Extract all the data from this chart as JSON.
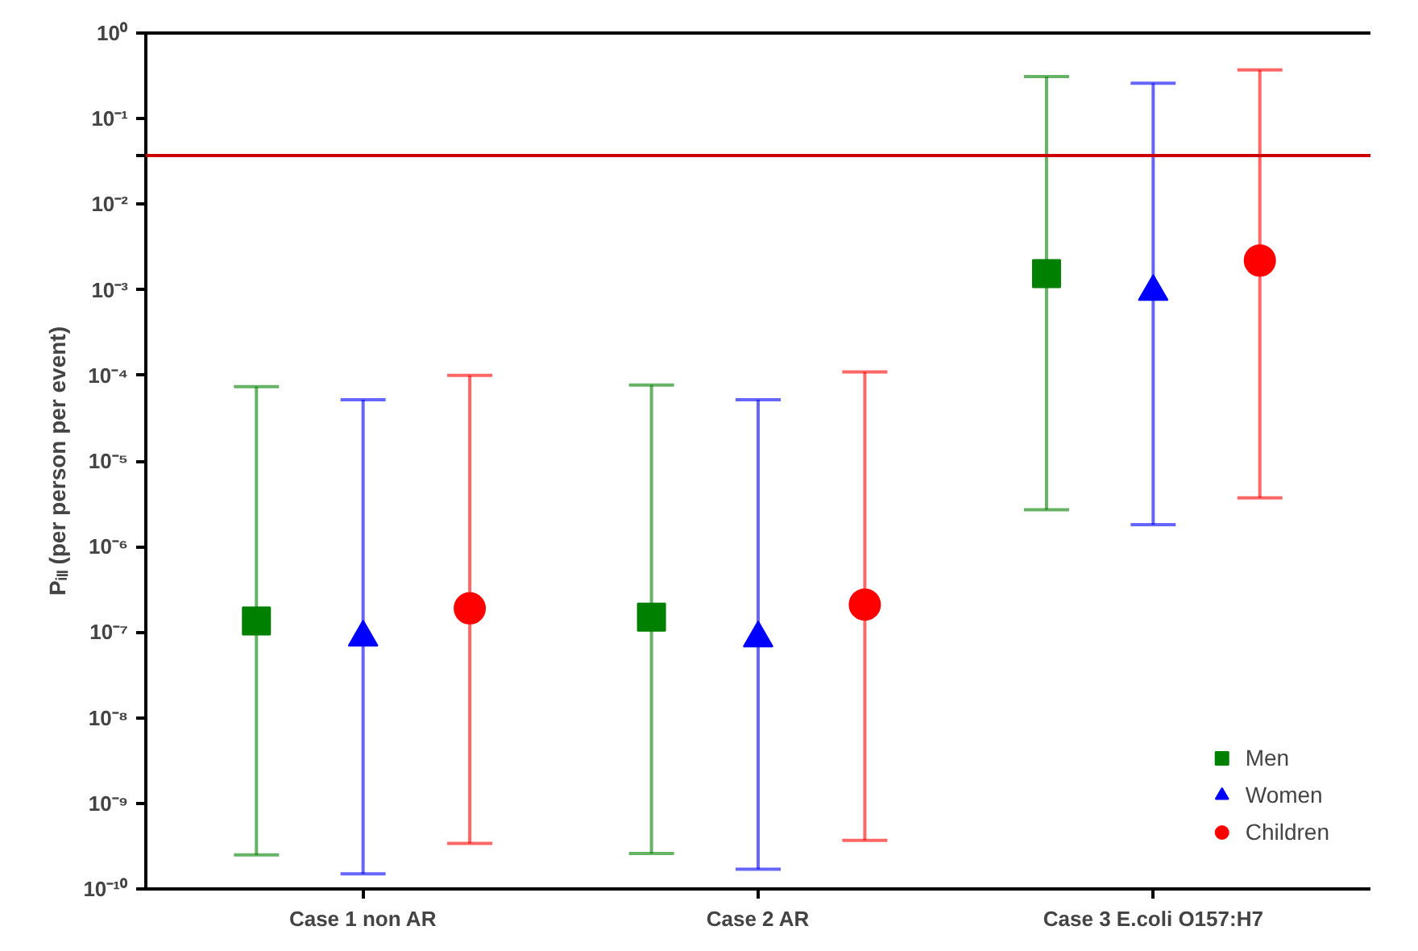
{
  "chart_data": {
    "type": "scatter",
    "ylabel": "Pᵢₗₗ (per person per event)",
    "categories": [
      "Case 1 non AR",
      "Case 2 AR",
      "Case 3 E.coli O157:H7"
    ],
    "log": "y",
    "ylim": [
      1e-10,
      1
    ],
    "yticks": [
      {
        "value": 1,
        "label": "10⁰"
      },
      {
        "value": 0.1,
        "label": "10⁻¹"
      },
      {
        "value": 0.037,
        "label": null
      },
      {
        "value": 0.01,
        "label": "10⁻²"
      },
      {
        "value": 0.001,
        "label": "10⁻³"
      },
      {
        "value": 0.0001,
        "label": "10⁻⁴"
      },
      {
        "value": 1e-05,
        "label": "10⁻⁵"
      },
      {
        "value": 1e-06,
        "label": "10⁻⁶"
      },
      {
        "value": 1e-07,
        "label": "10⁻⁷"
      },
      {
        "value": 1e-08,
        "label": "10⁻⁸"
      },
      {
        "value": 1e-09,
        "label": "10⁻⁹"
      },
      {
        "value": 1e-10,
        "label": "10⁻¹⁰"
      }
    ],
    "series": [
      {
        "name": "Men",
        "color": "#008000",
        "marker": "square",
        "values": [
          1.35e-07,
          1.5e-07,
          0.00155
        ],
        "errors": [
          [
            2.5e-10,
            7.4e-05
          ],
          [
            2.6e-10,
            7.7e-05
          ],
          [
            2.7e-06,
            0.31
          ]
        ]
      },
      {
        "name": "Women",
        "color": "#0000ff",
        "marker": "triangle",
        "values": [
          8.7e-08,
          8.5e-08,
          0.00095
        ],
        "errors": [
          [
            1.5e-10,
            5.2e-05
          ],
          [
            1.7e-10,
            5.2e-05
          ],
          [
            1.8e-06,
            0.26
          ]
        ]
      },
      {
        "name": "Children",
        "color": "#ff0000",
        "marker": "circle",
        "values": [
          1.9e-07,
          2.1e-07,
          0.0022
        ],
        "errors": [
          [
            3.4e-10,
            0.0001
          ],
          [
            3.7e-10,
            0.00011
          ],
          [
            3.7e-06,
            0.37
          ]
        ]
      }
    ],
    "ref_lines": [
      {
        "axis": "y",
        "value": 0.037,
        "color": "#cc0000"
      }
    ],
    "legend": "bottom right",
    "grid": false
  }
}
